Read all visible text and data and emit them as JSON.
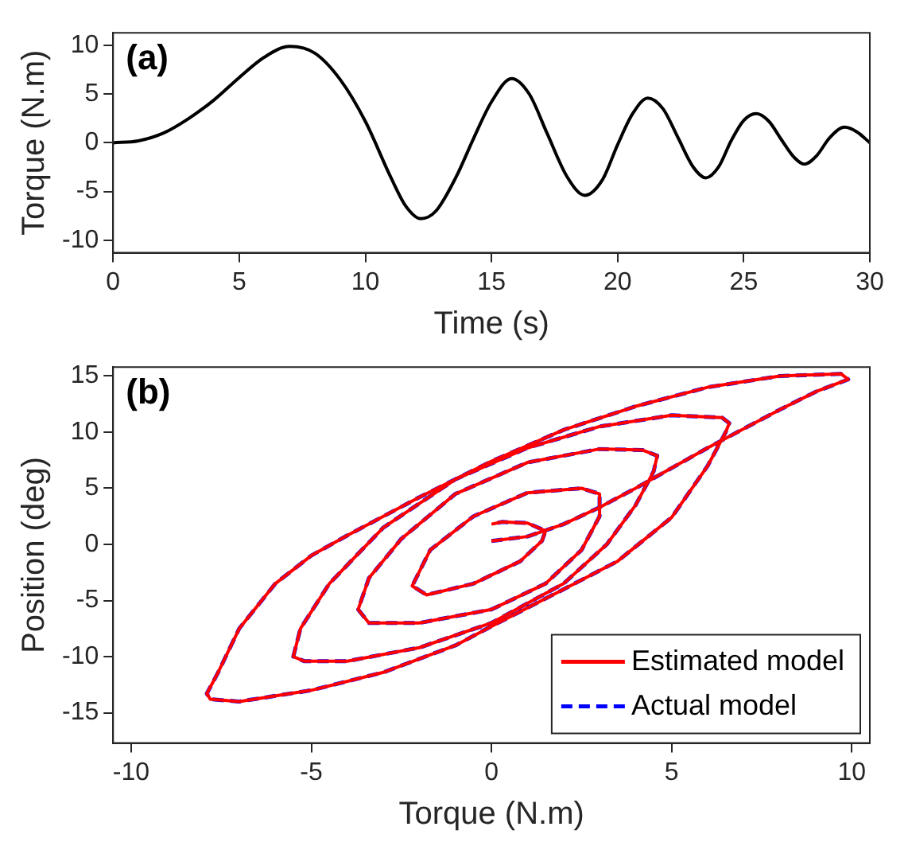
{
  "chart_data": [
    {
      "type": "line",
      "xlabel": "Time (s)",
      "ylabel": "Torque (N.m)",
      "annotations": [
        "(a)"
      ],
      "grid": false,
      "line_style": "solid",
      "xlim": [
        0,
        30
      ],
      "xticks": [
        0,
        5,
        10,
        15,
        20,
        25,
        30
      ],
      "ylim": [
        -11.3,
        11.3
      ],
      "yticks": [
        -10,
        -5,
        0,
        5,
        10
      ],
      "color": "#000000",
      "x": [
        0,
        1,
        2,
        3,
        4,
        5,
        6,
        7,
        8,
        9,
        10,
        11,
        11.6,
        12.2,
        12.8,
        13.6,
        14.3,
        15,
        15.8,
        16.5,
        17.2,
        18,
        18.7,
        19.4,
        20,
        20.6,
        21.2,
        21.8,
        22.4,
        23,
        23.5,
        24,
        24.5,
        25,
        25.5,
        26,
        26.5,
        27,
        27.4,
        27.9,
        28.4,
        29,
        29.5,
        30
      ],
      "values": [
        0,
        0.2,
        1,
        2.5,
        4.4,
        6.7,
        8.8,
        9.9,
        9.2,
        6.5,
        2.2,
        -3.5,
        -6.5,
        -7.8,
        -7,
        -3.5,
        0.5,
        4.2,
        6.6,
        5,
        1,
        -3.5,
        -5.4,
        -3.8,
        -0.2,
        3,
        4.6,
        3.5,
        0.5,
        -2.5,
        -3.6,
        -2.5,
        0.2,
        2.3,
        3,
        2.2,
        0.3,
        -1.5,
        -2.2,
        -1.3,
        0.5,
        1.6,
        1.1,
        0
      ]
    },
    {
      "type": "line",
      "xlabel": "Torque (N.m)",
      "ylabel": "Position (deg)",
      "annotations": [
        "(b)"
      ],
      "grid": false,
      "legend": "bottom right",
      "xlim": [
        -10.5,
        10.5
      ],
      "xticks": [
        -10,
        -5,
        0,
        5,
        10
      ],
      "ylim": [
        -17.7,
        15.8
      ],
      "yticks": [
        -15,
        -10,
        -5,
        0,
        5,
        10,
        15
      ],
      "series": [
        {
          "name": "Estimated model",
          "color": "#ff0000",
          "line_style": "solid",
          "x": [
            0,
            1,
            2,
            3,
            4,
            5,
            6,
            7,
            8,
            9,
            9.9,
            9.7,
            8,
            6,
            4,
            2,
            0,
            -2,
            -4,
            -5,
            -6,
            -7,
            -7.6,
            -7.9,
            -7.8,
            -7,
            -5,
            -3,
            -1,
            0,
            2,
            3.5,
            5,
            6,
            6.5,
            6.6,
            6.4,
            5,
            3,
            1,
            -1,
            -3,
            -4.5,
            -5.3,
            -5.5,
            -5.2,
            -4,
            -2,
            0,
            2,
            3.2,
            4,
            4.5,
            4.6,
            4.2,
            3,
            1,
            -1,
            -2.5,
            -3.4,
            -3.7,
            -3.4,
            -2,
            0,
            1.5,
            2.5,
            3,
            3,
            2.5,
            1,
            -0.5,
            -1.7,
            -2.2,
            -1.8,
            -0.5,
            0.8,
            1.4,
            1.5,
            1,
            0.3,
            0
          ],
          "values": [
            0.3,
            0.7,
            1.8,
            3.3,
            5,
            6.8,
            8.6,
            10.3,
            12,
            13.6,
            14.7,
            15.2,
            15,
            14,
            12.3,
            10.2,
            7.4,
            4.2,
            0.8,
            -1,
            -3.5,
            -7.5,
            -11.5,
            -13.3,
            -13.8,
            -14,
            -13,
            -11.4,
            -9,
            -7.3,
            -4,
            -1.5,
            2.4,
            7,
            10,
            10.8,
            11.3,
            11.5,
            10.5,
            8.6,
            5.8,
            1.5,
            -3.5,
            -7.5,
            -10,
            -10.4,
            -10.4,
            -9.2,
            -7,
            -3.5,
            0,
            3.5,
            6.5,
            7.9,
            8.4,
            8.5,
            7.3,
            4.5,
            0.5,
            -3,
            -5.8,
            -7,
            -7,
            -5.8,
            -3.5,
            -0.5,
            2.5,
            4.5,
            5,
            4.6,
            2.5,
            -0.5,
            -3.7,
            -4.5,
            -3.5,
            -1.5,
            0.3,
            1.2,
            1.9,
            2,
            1.8
          ]
        },
        {
          "name": "Actual model",
          "color": "#0000ff",
          "line_style": "dashed",
          "x": [
            0,
            1,
            2,
            3,
            4,
            5,
            6,
            7,
            8,
            9,
            9.9,
            9.7,
            8,
            6,
            4,
            2,
            0,
            -2,
            -4,
            -5,
            -6,
            -7,
            -7.6,
            -7.9,
            -7.8,
            -7,
            -5,
            -3,
            -1,
            0,
            2,
            3.5,
            5,
            6,
            6.5,
            6.6,
            6.4,
            5,
            3,
            1,
            -1,
            -3,
            -4.5,
            -5.3,
            -5.5,
            -5.2,
            -4,
            -2,
            0,
            2,
            3.2,
            4,
            4.5,
            4.6,
            4.2,
            3,
            1,
            -1,
            -2.5,
            -3.4,
            -3.7,
            -3.4,
            -2,
            0,
            1.5,
            2.5,
            3,
            3,
            2.5,
            1,
            -0.5,
            -1.7,
            -2.2,
            -1.8,
            -0.5,
            0.8,
            1.4,
            1.5,
            1,
            0.3,
            0
          ],
          "values": [
            0.3,
            0.7,
            1.8,
            3.3,
            5,
            6.8,
            8.6,
            10.3,
            12,
            13.6,
            14.7,
            15.2,
            15,
            14,
            12.3,
            10.2,
            7.4,
            4.2,
            0.8,
            -1,
            -3.5,
            -7.5,
            -11.5,
            -13.3,
            -13.8,
            -14,
            -13,
            -11.4,
            -9,
            -7.3,
            -4,
            -1.5,
            2.4,
            7,
            10,
            10.8,
            11.3,
            11.5,
            10.5,
            8.6,
            5.8,
            1.5,
            -3.5,
            -7.5,
            -10,
            -10.4,
            -10.4,
            -9.2,
            -7,
            -3.5,
            0,
            3.5,
            6.5,
            7.9,
            8.4,
            8.5,
            7.3,
            4.5,
            0.5,
            -3,
            -5.8,
            -7,
            -7,
            -5.8,
            -3.5,
            -0.5,
            2.5,
            4.5,
            5,
            4.6,
            2.5,
            -0.5,
            -3.7,
            -4.5,
            -3.5,
            -1.5,
            0.3,
            1.2,
            1.9,
            2,
            1.8
          ]
        }
      ]
    }
  ]
}
